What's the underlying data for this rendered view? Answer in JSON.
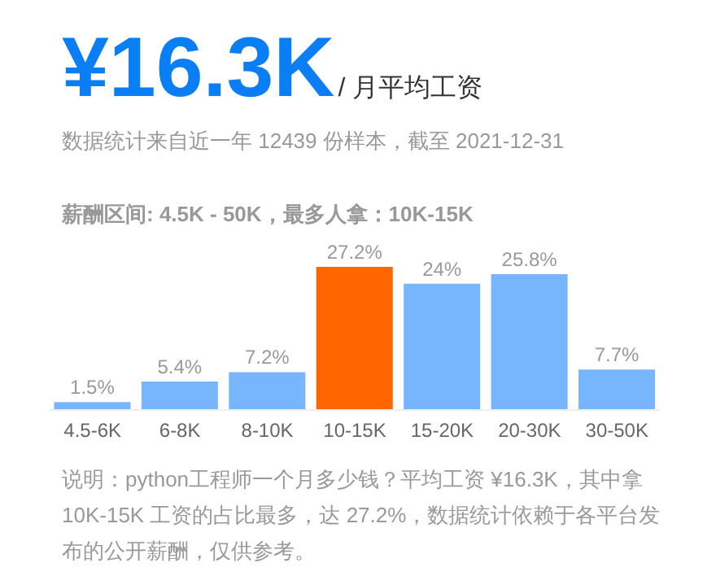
{
  "chart_data": {
    "type": "bar",
    "title": "¥16.3K",
    "subtitle": "/ 月平均工资",
    "annotations": [
      "数据统计来自近一年 12439 份样本，截至 2021-12-31",
      "薪酬区间: 4.5K - 50K，最多人拿：10K-15K",
      "说明：python工程师一个月多少钱？平均工资 ¥16.3K，其中拿 10K-15K 工资的占比最多，达 27.2%，数据统计依赖于各平台发布的公开薪酬，仅供参考。"
    ],
    "categories": [
      "4.5-6K",
      "6-8K",
      "8-10K",
      "10-15K",
      "15-20K",
      "20-30K",
      "30-50K"
    ],
    "values": [
      1.5,
      5.4,
      7.2,
      27.2,
      24,
      25.8,
      7.7
    ],
    "colors": [
      "#77b6fc",
      "#77b6fc",
      "#77b6fc",
      "#ff6600",
      "#77b6fc",
      "#77b6fc",
      "#77b6fc"
    ],
    "value_labels": [
      "1.5%",
      "5.4%",
      "7.2%",
      "27.2%",
      "24%",
      "25.8%",
      "7.7%"
    ],
    "legend": false
  }
}
